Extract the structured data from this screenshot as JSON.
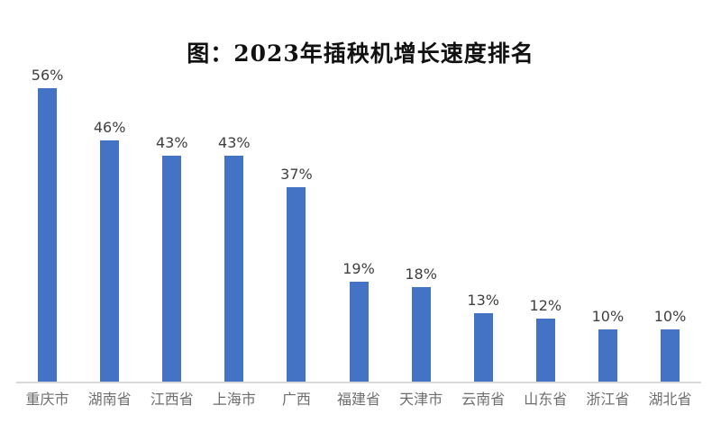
{
  "chart_data": {
    "type": "bar",
    "title": "图：2023年插秧机增长速度排名",
    "categories": [
      "重庆市",
      "湖南省",
      "江西省",
      "上海市",
      "广西",
      "福建省",
      "天津市",
      "云南省",
      "山东省",
      "浙江省",
      "湖北省"
    ],
    "values": [
      56,
      46,
      43,
      43,
      37,
      19,
      18,
      13,
      12,
      10,
      10
    ],
    "value_labels": [
      "56%",
      "46%",
      "43%",
      "43%",
      "37%",
      "19%",
      "18%",
      "13%",
      "12%",
      "10%",
      "10%"
    ],
    "xlabel": "",
    "ylabel": "",
    "ylim": [
      0,
      60
    ],
    "grid": false,
    "legend": false,
    "colors": {
      "bar": "#4472C4",
      "axis_line": "#D9D9D9",
      "value_label": "#404040",
      "category_label": "#6e6e6e",
      "title": "#111111",
      "background": "#FFFFFF"
    }
  }
}
